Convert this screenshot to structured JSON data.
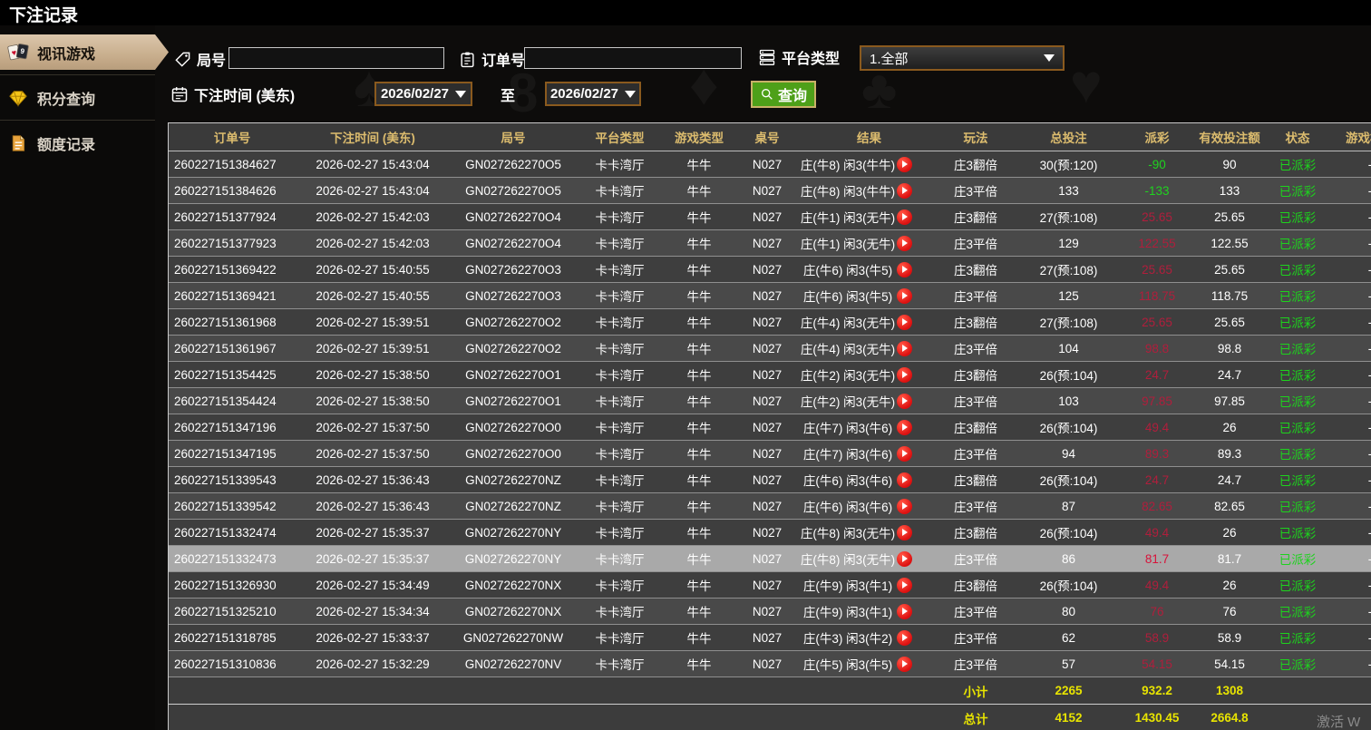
{
  "title": "下注记录",
  "sidebar": {
    "items": [
      {
        "label": "视讯游戏",
        "icon": "playing-cards-icon",
        "active": true
      },
      {
        "label": "积分查询",
        "icon": "diamond-icon",
        "active": false
      },
      {
        "label": "额度记录",
        "icon": "document-icon",
        "active": false
      }
    ]
  },
  "filters": {
    "round_label": "局号",
    "round_value": "",
    "order_label": "订单号",
    "order_value": "",
    "platform_label": "平台类型",
    "platform_value": "1.全部",
    "time_label": "下注时间 (美东)",
    "date_from": "2026/02/27",
    "to_label": "至",
    "date_to": "2026/02/27",
    "search_label": "查询"
  },
  "table": {
    "columns": [
      "订单号",
      "下注时间 (美东)",
      "局号",
      "平台类型",
      "游戏类型",
      "桌号",
      "结果",
      "玩法",
      "总投注",
      "派彩",
      "有效投注额",
      "状态",
      "游戏模式"
    ],
    "rows": [
      {
        "order": "260227151384627",
        "time": "2026-02-27 15:43:04",
        "round": "GN027262270O5",
        "platform": "卡卡湾厅",
        "game": "牛牛",
        "table_no": "N027",
        "result": "庄(牛8) 闲3(牛牛)",
        "play": "庄3翻倍",
        "total_bet": "30(预:120)",
        "payout": "-90",
        "valid_bet": "90",
        "status": "已派彩",
        "mode": "-",
        "highlight": false
      },
      {
        "order": "260227151384626",
        "time": "2026-02-27 15:43:04",
        "round": "GN027262270O5",
        "platform": "卡卡湾厅",
        "game": "牛牛",
        "table_no": "N027",
        "result": "庄(牛8) 闲3(牛牛)",
        "play": "庄3平倍",
        "total_bet": "133",
        "payout": "-133",
        "valid_bet": "133",
        "status": "已派彩",
        "mode": "-",
        "highlight": false
      },
      {
        "order": "260227151377924",
        "time": "2026-02-27 15:42:03",
        "round": "GN027262270O4",
        "platform": "卡卡湾厅",
        "game": "牛牛",
        "table_no": "N027",
        "result": "庄(牛1) 闲3(无牛)",
        "play": "庄3翻倍",
        "total_bet": "27(预:108)",
        "payout": "25.65",
        "valid_bet": "25.65",
        "status": "已派彩",
        "mode": "-",
        "highlight": false
      },
      {
        "order": "260227151377923",
        "time": "2026-02-27 15:42:03",
        "round": "GN027262270O4",
        "platform": "卡卡湾厅",
        "game": "牛牛",
        "table_no": "N027",
        "result": "庄(牛1) 闲3(无牛)",
        "play": "庄3平倍",
        "total_bet": "129",
        "payout": "122.55",
        "valid_bet": "122.55",
        "status": "已派彩",
        "mode": "-",
        "highlight": false
      },
      {
        "order": "260227151369422",
        "time": "2026-02-27 15:40:55",
        "round": "GN027262270O3",
        "platform": "卡卡湾厅",
        "game": "牛牛",
        "table_no": "N027",
        "result": "庄(牛6) 闲3(牛5)",
        "play": "庄3翻倍",
        "total_bet": "27(预:108)",
        "payout": "25.65",
        "valid_bet": "25.65",
        "status": "已派彩",
        "mode": "-",
        "highlight": false
      },
      {
        "order": "260227151369421",
        "time": "2026-02-27 15:40:55",
        "round": "GN027262270O3",
        "platform": "卡卡湾厅",
        "game": "牛牛",
        "table_no": "N027",
        "result": "庄(牛6) 闲3(牛5)",
        "play": "庄3平倍",
        "total_bet": "125",
        "payout": "118.75",
        "valid_bet": "118.75",
        "status": "已派彩",
        "mode": "-",
        "highlight": false
      },
      {
        "order": "260227151361968",
        "time": "2026-02-27 15:39:51",
        "round": "GN027262270O2",
        "platform": "卡卡湾厅",
        "game": "牛牛",
        "table_no": "N027",
        "result": "庄(牛4) 闲3(无牛)",
        "play": "庄3翻倍",
        "total_bet": "27(预:108)",
        "payout": "25.65",
        "valid_bet": "25.65",
        "status": "已派彩",
        "mode": "-",
        "highlight": false
      },
      {
        "order": "260227151361967",
        "time": "2026-02-27 15:39:51",
        "round": "GN027262270O2",
        "platform": "卡卡湾厅",
        "game": "牛牛",
        "table_no": "N027",
        "result": "庄(牛4) 闲3(无牛)",
        "play": "庄3平倍",
        "total_bet": "104",
        "payout": "98.8",
        "valid_bet": "98.8",
        "status": "已派彩",
        "mode": "-",
        "highlight": false
      },
      {
        "order": "260227151354425",
        "time": "2026-02-27 15:38:50",
        "round": "GN027262270O1",
        "platform": "卡卡湾厅",
        "game": "牛牛",
        "table_no": "N027",
        "result": "庄(牛2) 闲3(无牛)",
        "play": "庄3翻倍",
        "total_bet": "26(预:104)",
        "payout": "24.7",
        "valid_bet": "24.7",
        "status": "已派彩",
        "mode": "-",
        "highlight": false
      },
      {
        "order": "260227151354424",
        "time": "2026-02-27 15:38:50",
        "round": "GN027262270O1",
        "platform": "卡卡湾厅",
        "game": "牛牛",
        "table_no": "N027",
        "result": "庄(牛2) 闲3(无牛)",
        "play": "庄3平倍",
        "total_bet": "103",
        "payout": "97.85",
        "valid_bet": "97.85",
        "status": "已派彩",
        "mode": "-",
        "highlight": false
      },
      {
        "order": "260227151347196",
        "time": "2026-02-27 15:37:50",
        "round": "GN027262270O0",
        "platform": "卡卡湾厅",
        "game": "牛牛",
        "table_no": "N027",
        "result": "庄(牛7) 闲3(牛6)",
        "play": "庄3翻倍",
        "total_bet": "26(预:104)",
        "payout": "49.4",
        "valid_bet": "26",
        "status": "已派彩",
        "mode": "-",
        "highlight": false
      },
      {
        "order": "260227151347195",
        "time": "2026-02-27 15:37:50",
        "round": "GN027262270O0",
        "platform": "卡卡湾厅",
        "game": "牛牛",
        "table_no": "N027",
        "result": "庄(牛7) 闲3(牛6)",
        "play": "庄3平倍",
        "total_bet": "94",
        "payout": "89.3",
        "valid_bet": "89.3",
        "status": "已派彩",
        "mode": "-",
        "highlight": false
      },
      {
        "order": "260227151339543",
        "time": "2026-02-27 15:36:43",
        "round": "GN027262270NZ",
        "platform": "卡卡湾厅",
        "game": "牛牛",
        "table_no": "N027",
        "result": "庄(牛6) 闲3(牛6)",
        "play": "庄3翻倍",
        "total_bet": "26(预:104)",
        "payout": "24.7",
        "valid_bet": "24.7",
        "status": "已派彩",
        "mode": "-",
        "highlight": false
      },
      {
        "order": "260227151339542",
        "time": "2026-02-27 15:36:43",
        "round": "GN027262270NZ",
        "platform": "卡卡湾厅",
        "game": "牛牛",
        "table_no": "N027",
        "result": "庄(牛6) 闲3(牛6)",
        "play": "庄3平倍",
        "total_bet": "87",
        "payout": "82.65",
        "valid_bet": "82.65",
        "status": "已派彩",
        "mode": "-",
        "highlight": false
      },
      {
        "order": "260227151332474",
        "time": "2026-02-27 15:35:37",
        "round": "GN027262270NY",
        "platform": "卡卡湾厅",
        "game": "牛牛",
        "table_no": "N027",
        "result": "庄(牛8) 闲3(无牛)",
        "play": "庄3翻倍",
        "total_bet": "26(预:104)",
        "payout": "49.4",
        "valid_bet": "26",
        "status": "已派彩",
        "mode": "-",
        "highlight": false
      },
      {
        "order": "260227151332473",
        "time": "2026-02-27 15:35:37",
        "round": "GN027262270NY",
        "platform": "卡卡湾厅",
        "game": "牛牛",
        "table_no": "N027",
        "result": "庄(牛8) 闲3(无牛)",
        "play": "庄3平倍",
        "total_bet": "86",
        "payout": "81.7",
        "valid_bet": "81.7",
        "status": "已派彩",
        "mode": "-",
        "highlight": true
      },
      {
        "order": "260227151326930",
        "time": "2026-02-27 15:34:49",
        "round": "GN027262270NX",
        "platform": "卡卡湾厅",
        "game": "牛牛",
        "table_no": "N027",
        "result": "庄(牛9) 闲3(牛1)",
        "play": "庄3翻倍",
        "total_bet": "26(预:104)",
        "payout": "49.4",
        "valid_bet": "26",
        "status": "已派彩",
        "mode": "-",
        "highlight": false
      },
      {
        "order": "260227151325210",
        "time": "2026-02-27 15:34:34",
        "round": "GN027262270NX",
        "platform": "卡卡湾厅",
        "game": "牛牛",
        "table_no": "N027",
        "result": "庄(牛9) 闲3(牛1)",
        "play": "庄3平倍",
        "total_bet": "80",
        "payout": "76",
        "valid_bet": "76",
        "status": "已派彩",
        "mode": "-",
        "highlight": false
      },
      {
        "order": "260227151318785",
        "time": "2026-02-27 15:33:37",
        "round": "GN027262270NW",
        "platform": "卡卡湾厅",
        "game": "牛牛",
        "table_no": "N027",
        "result": "庄(牛3) 闲3(牛2)",
        "play": "庄3平倍",
        "total_bet": "62",
        "payout": "58.9",
        "valid_bet": "58.9",
        "status": "已派彩",
        "mode": "-",
        "highlight": false
      },
      {
        "order": "260227151310836",
        "time": "2026-02-27 15:32:29",
        "round": "GN027262270NV",
        "platform": "卡卡湾厅",
        "game": "牛牛",
        "table_no": "N027",
        "result": "庄(牛5) 闲3(牛5)",
        "play": "庄3平倍",
        "total_bet": "57",
        "payout": "54.15",
        "valid_bet": "54.15",
        "status": "已派彩",
        "mode": "-",
        "highlight": false
      }
    ],
    "summary_rows": [
      {
        "label": "小计",
        "total_bet": "2265",
        "payout": "932.2",
        "valid_bet": "1308"
      },
      {
        "label": "总计",
        "total_bet": "4152",
        "payout": "1430.45",
        "valid_bet": "2664.8"
      }
    ]
  },
  "watermark": "激活 W",
  "colors": {
    "accent_gold": "#dcbc6e",
    "active_tab_tan": "#c8ae8d",
    "positive_payout_red": "#b01e3c",
    "negative_payout_green": "#1fd31f",
    "status_green": "#1dd31d",
    "summary_yellow": "#e8e400",
    "search_button_green": "#4ea019",
    "date_border_brown": "#8a5a1e",
    "highlight_row_gray": "#a9a9a9",
    "play_button_red": "#dc1010"
  }
}
